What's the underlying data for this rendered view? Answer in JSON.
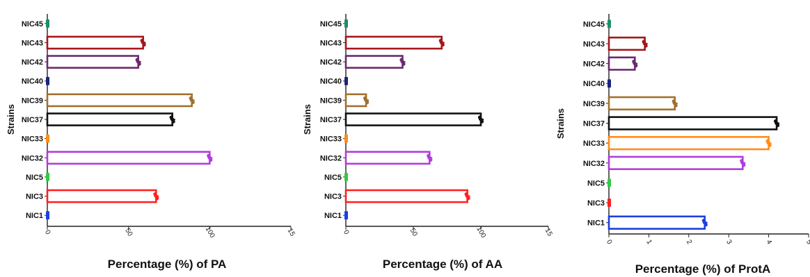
{
  "chart_data": [
    {
      "type": "bar",
      "orientation": "horizontal",
      "title": "",
      "xlabel": "Percentage (%) of PA",
      "ylabel": "Strains",
      "xlim": [
        0,
        150
      ],
      "xticks": [
        "0",
        "50",
        "100",
        "15"
      ],
      "grid": false,
      "categories": [
        "NIC45",
        "NIC43",
        "NIC42",
        "NIC40",
        "NIC39",
        "NIC37",
        "NIC33",
        "NIC32",
        "NIC5",
        "NIC3",
        "NIC1"
      ],
      "values": [
        0,
        59,
        56,
        0,
        89,
        77,
        0,
        100,
        0,
        67,
        0
      ]
    },
    {
      "type": "bar",
      "orientation": "horizontal",
      "title": "",
      "xlabel": "Percentage (%) of AA",
      "ylabel": "Strains",
      "xlim": [
        0,
        150
      ],
      "xticks": [
        "0",
        "50",
        "100",
        "15"
      ],
      "grid": false,
      "categories": [
        "NIC45",
        "NIC43",
        "NIC42",
        "NIC40",
        "NIC39",
        "NIC37",
        "NIC33",
        "NIC32",
        "NIC5",
        "NIC3",
        "NIC1"
      ],
      "values": [
        0,
        71,
        42,
        0,
        15,
        100,
        0,
        62,
        0,
        90,
        0
      ]
    },
    {
      "type": "bar",
      "orientation": "horizontal",
      "title": "",
      "xlabel": "Percentage (%) of ProtA",
      "ylabel": "Strains",
      "xlim": [
        0,
        5
      ],
      "xticks": [
        "0",
        "1",
        "2",
        "3",
        "4",
        "5"
      ],
      "grid": false,
      "categories": [
        "NIC45",
        "NIC43",
        "NIC42",
        "NIC40",
        "NIC39",
        "NIC37",
        "NIC33",
        "NIC32",
        "NIC5",
        "NIC3",
        "NIC1"
      ],
      "values": [
        0,
        0.9,
        0.65,
        0,
        1.65,
        4.2,
        4.0,
        3.35,
        0,
        0,
        2.4
      ]
    }
  ],
  "colors": {
    "NIC45": "#1b8f6a",
    "NIC43": "#a4161a",
    "NIC42": "#6b2a6e",
    "NIC40": "#1a237e",
    "NIC39": "#a0712d",
    "NIC37": "#111111",
    "NIC33": "#ff8c1a",
    "NIC32": "#b23ddb",
    "NIC5": "#2ecc40",
    "NIC3": "#ff2020",
    "NIC1": "#1d3fe0"
  }
}
